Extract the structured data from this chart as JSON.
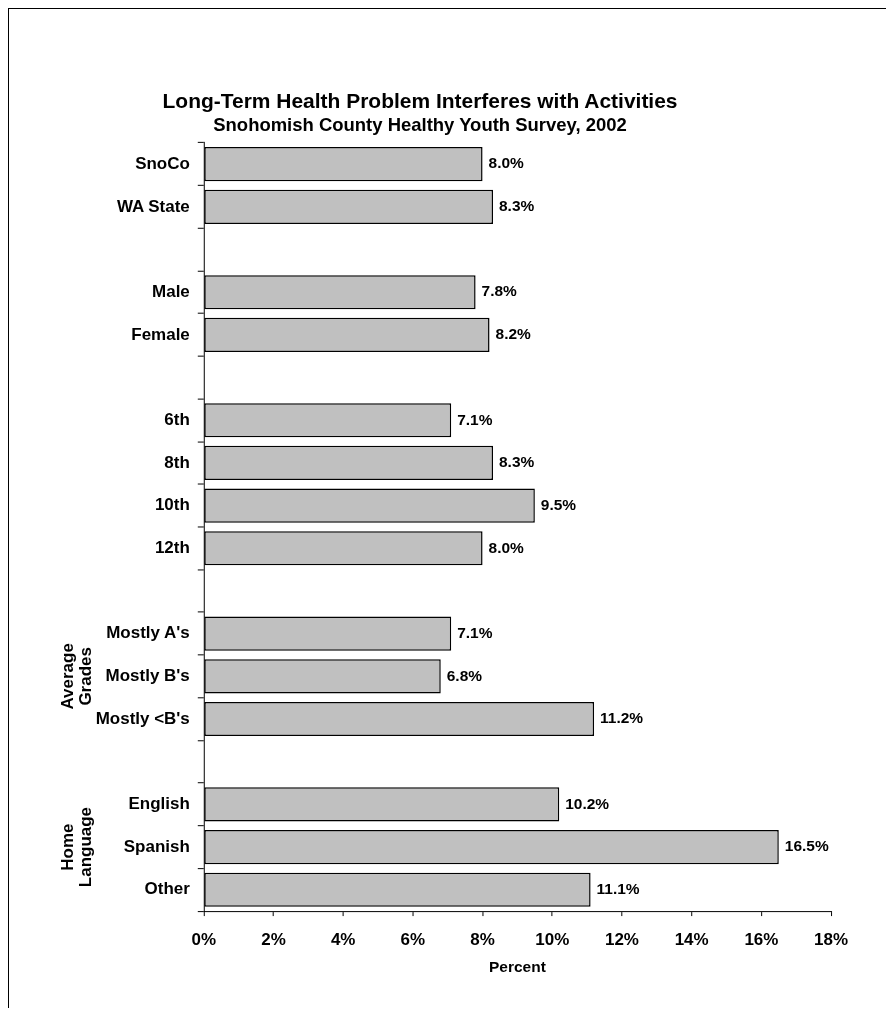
{
  "chart_data": {
    "type": "bar",
    "orientation": "horizontal",
    "title": "Long-Term Health Problem Interferes with Activities",
    "subtitle": "Snohomish County Healthy Youth Survey, 2002",
    "xlabel": "Percent",
    "categories": [
      "SnoCo",
      "WA State",
      null,
      "Male",
      "Female",
      null,
      "6th",
      "8th",
      "10th",
      "12th",
      null,
      "Mostly A's",
      "Mostly B's",
      "Mostly <B's",
      null,
      "English",
      "Spanish",
      "Other"
    ],
    "values": [
      8.0,
      8.3,
      null,
      7.8,
      8.2,
      null,
      7.1,
      8.3,
      9.5,
      8.0,
      null,
      7.1,
      6.8,
      11.2,
      null,
      10.2,
      16.5,
      11.1
    ],
    "value_labels": [
      "8.0%",
      "8.3%",
      null,
      "7.8%",
      "8.2%",
      null,
      "7.1%",
      "8.3%",
      "9.5%",
      "8.0%",
      null,
      "7.1%",
      "6.8%",
      "11.2%",
      null,
      "10.2%",
      "16.5%",
      "11.1%"
    ],
    "color": "#c0c0c0",
    "xlim": [
      0,
      18
    ],
    "xticks": [
      {
        "value": 0,
        "label": "0%"
      },
      {
        "value": 2,
        "label": "2%"
      },
      {
        "value": 4,
        "label": "4%"
      },
      {
        "value": 6,
        "label": "6%"
      },
      {
        "value": 8,
        "label": "8%"
      },
      {
        "value": 10,
        "label": "10%"
      },
      {
        "value": 12,
        "label": "12%"
      },
      {
        "value": 14,
        "label": "14%"
      },
      {
        "value": 16,
        "label": "16%"
      },
      {
        "value": 18,
        "label": "18%"
      }
    ],
    "annotations": [
      "Average Grades",
      "Home Language"
    ]
  }
}
